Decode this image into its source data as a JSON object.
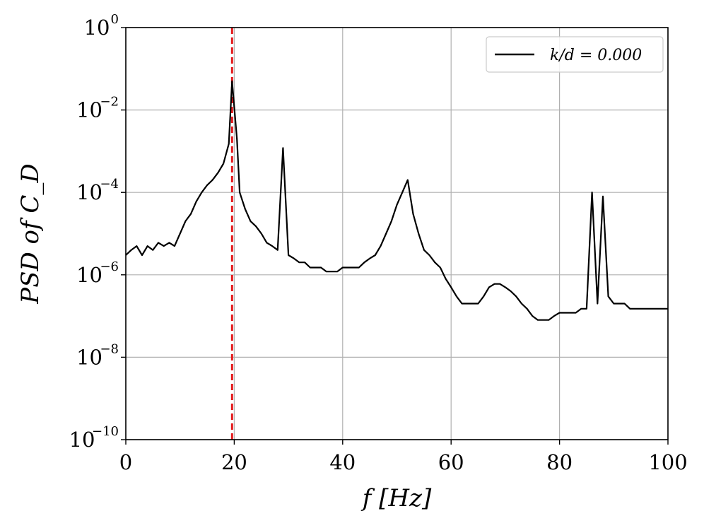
{
  "chart_data": {
    "type": "line",
    "title": "",
    "xlabel": "f [Hz]",
    "ylabel": "PSD of C_D",
    "xlim": [
      0,
      100
    ],
    "ylim": [
      1e-10,
      1
    ],
    "yscale": "log",
    "grid": true,
    "legend_position": "top-right",
    "x_ticks": [
      {
        "value": 0,
        "label": "0"
      },
      {
        "value": 20,
        "label": "20"
      },
      {
        "value": 40,
        "label": "40"
      },
      {
        "value": 60,
        "label": "60"
      },
      {
        "value": 80,
        "label": "80"
      },
      {
        "value": 100,
        "label": "100"
      }
    ],
    "y_ticks": [
      {
        "value": 1e-10,
        "base": "10",
        "exp": "−10"
      },
      {
        "value": 1e-08,
        "base": "10",
        "exp": "−8"
      },
      {
        "value": 1e-06,
        "base": "10",
        "exp": "−6"
      },
      {
        "value": 0.0001,
        "base": "10",
        "exp": "−4"
      },
      {
        "value": 0.01,
        "base": "10",
        "exp": "−2"
      },
      {
        "value": 1,
        "base": "10",
        "exp": "0"
      }
    ],
    "vertical_line": {
      "x": 19.6,
      "color": "#e41a1c",
      "style": "dashed"
    },
    "series": [
      {
        "name": "k/d = 0.000",
        "color": "#000000",
        "x": [
          0,
          1,
          2,
          3,
          4,
          5,
          6,
          7,
          8,
          9,
          10,
          11,
          12,
          13,
          14,
          15,
          16,
          17,
          18,
          19,
          19.6,
          20.5,
          21,
          22,
          23,
          24,
          25,
          26,
          27,
          28,
          29,
          30,
          31,
          32,
          33,
          34,
          35,
          36,
          37,
          38,
          39,
          40,
          41,
          42,
          43,
          44,
          45,
          46,
          47,
          48,
          49,
          50,
          51,
          52,
          53,
          54,
          55,
          56,
          57,
          58,
          59,
          60,
          61,
          62,
          63,
          64,
          65,
          66,
          67,
          68,
          69,
          70,
          71,
          72,
          73,
          74,
          75,
          76,
          77,
          78,
          79,
          80,
          81,
          82,
          83,
          84,
          85,
          86,
          87,
          88,
          89,
          90,
          91,
          92,
          93,
          94,
          95,
          96,
          97,
          98,
          99,
          100
        ],
        "values": [
          3e-06,
          4e-06,
          5e-06,
          3e-06,
          5e-06,
          4e-06,
          6e-06,
          5e-06,
          6e-06,
          5e-06,
          1e-05,
          2e-05,
          3e-05,
          6e-05,
          0.0001,
          0.00015,
          0.0002,
          0.0003,
          0.0005,
          0.0015,
          0.05,
          0.002,
          0.0001,
          4e-05,
          2e-05,
          1.5e-05,
          1e-05,
          6e-06,
          5e-06,
          4e-06,
          0.0012,
          3e-06,
          2.5e-06,
          2e-06,
          2e-06,
          1.5e-06,
          1.5e-06,
          1.5e-06,
          1.2e-06,
          1.2e-06,
          1.2e-06,
          1.5e-06,
          1.5e-06,
          1.5e-06,
          1.5e-06,
          2e-06,
          2.5e-06,
          3e-06,
          5e-06,
          1e-05,
          2e-05,
          5e-05,
          0.0001,
          0.0002,
          3e-05,
          1e-05,
          4e-06,
          3e-06,
          2e-06,
          1.5e-06,
          8e-07,
          5e-07,
          3e-07,
          2e-07,
          2e-07,
          2e-07,
          2e-07,
          3e-07,
          5e-07,
          6e-07,
          6e-07,
          5e-07,
          4e-07,
          3e-07,
          2e-07,
          1.5e-07,
          1e-07,
          8e-08,
          8e-08,
          8e-08,
          1e-07,
          1.2e-07,
          1.2e-07,
          1.2e-07,
          1.2e-07,
          1.5e-07,
          1.5e-07,
          0.0001,
          2e-07,
          8e-05,
          3e-07,
          2e-07,
          2e-07,
          2e-07,
          1.5e-07,
          1.5e-07,
          1.5e-07,
          1.5e-07,
          1.5e-07,
          1.5e-07,
          1.5e-07,
          1.5e-07
        ]
      }
    ]
  }
}
